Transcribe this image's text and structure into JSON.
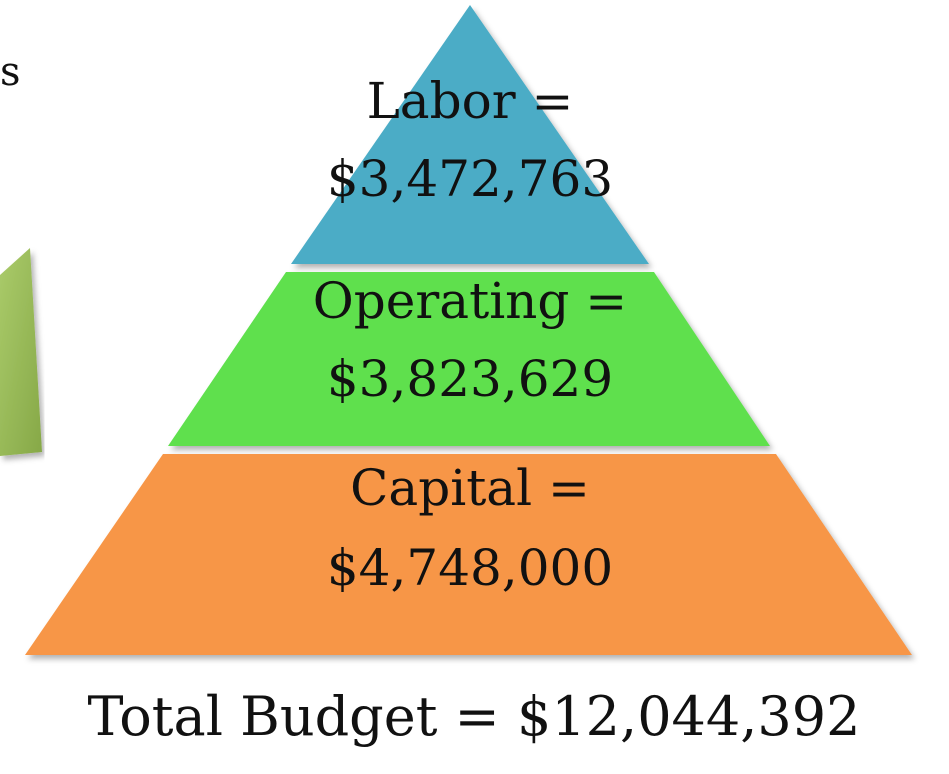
{
  "fragment": "s",
  "layers": [
    {
      "label": "Labor =",
      "amount": "$3,472,763"
    },
    {
      "label": "Operating =",
      "amount": "$3,823,629"
    },
    {
      "label": "Capital =",
      "amount": "$4,748,000"
    }
  ],
  "total": "Total Budget = $12,044,392"
}
